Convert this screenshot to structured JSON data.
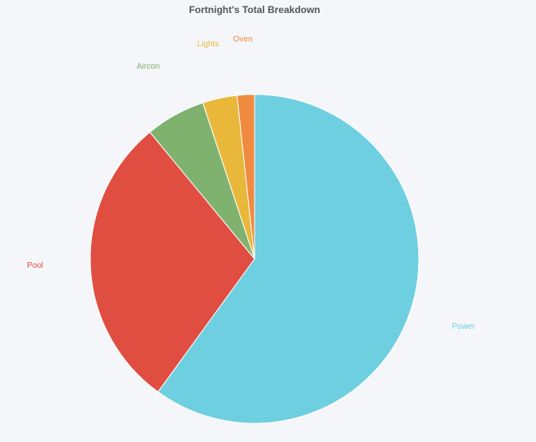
{
  "chart_data": {
    "type": "pie",
    "title": "Fortnight's Total Breakdown",
    "categories": [
      "Power",
      "Pool",
      "Aircon",
      "Lights",
      "Oven"
    ],
    "values": [
      60,
      29,
      5.9,
      3.4,
      1.7
    ],
    "colors": [
      "#6ecfe0",
      "#e04e41",
      "#7fb26e",
      "#e9b83b",
      "#ef8a3e"
    ]
  }
}
